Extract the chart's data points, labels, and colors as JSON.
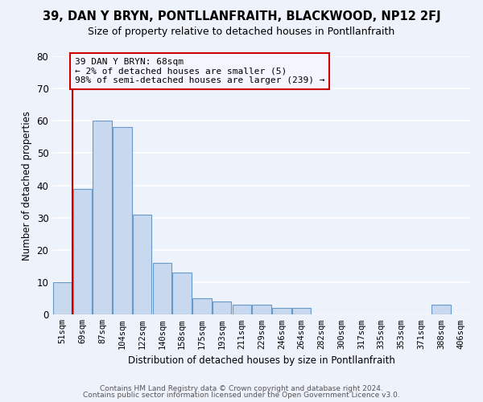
{
  "title": "39, DAN Y BRYN, PONTLLANFRAITH, BLACKWOOD, NP12 2FJ",
  "subtitle": "Size of property relative to detached houses in Pontllanfraith",
  "xlabel": "Distribution of detached houses by size in Pontllanfraith",
  "ylabel": "Number of detached properties",
  "bin_labels": [
    "51sqm",
    "69sqm",
    "87sqm",
    "104sqm",
    "122sqm",
    "140sqm",
    "158sqm",
    "175sqm",
    "193sqm",
    "211sqm",
    "229sqm",
    "246sqm",
    "264sqm",
    "282sqm",
    "300sqm",
    "317sqm",
    "335sqm",
    "353sqm",
    "371sqm",
    "388sqm",
    "406sqm"
  ],
  "bar_values": [
    10,
    39,
    60,
    58,
    31,
    16,
    13,
    5,
    4,
    3,
    3,
    2,
    2,
    0,
    0,
    0,
    0,
    0,
    0,
    3,
    0
  ],
  "bar_color": "#c8d8ee",
  "bar_edge_color": "#6699cc",
  "reference_line_x": 0.5,
  "reference_line_color": "#cc0000",
  "annotation_line1": "39 DAN Y BRYN: 68sqm",
  "annotation_line2": "← 2% of detached houses are smaller (5)",
  "annotation_line3": "98% of semi-detached houses are larger (239) →",
  "annotation_box_edge_color": "#cc0000",
  "annotation_box_facecolor": "#f5f5ff",
  "ylim": [
    0,
    80
  ],
  "yticks": [
    0,
    10,
    20,
    30,
    40,
    50,
    60,
    70,
    80
  ],
  "footer_line1": "Contains HM Land Registry data © Crown copyright and database right 2024.",
  "footer_line2": "Contains public sector information licensed under the Open Government Licence v3.0.",
  "bg_color": "#eef2fb",
  "grid_color": "#ffffff",
  "title_fontsize": 10.5,
  "subtitle_fontsize": 9
}
